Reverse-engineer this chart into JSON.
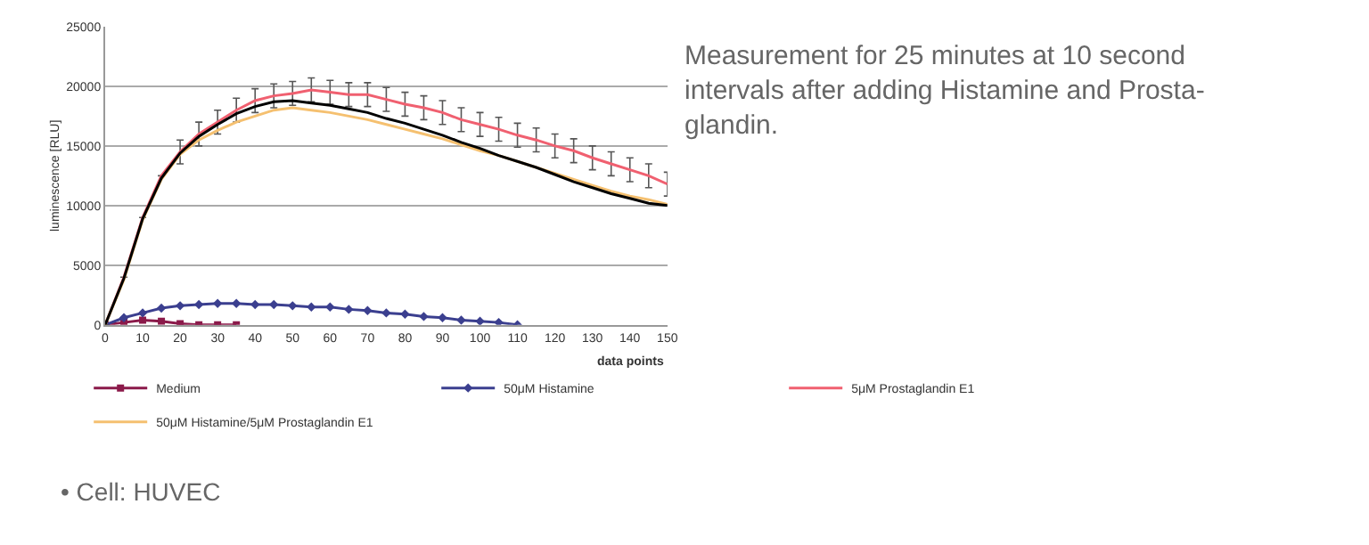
{
  "chart_data": {
    "type": "line",
    "ylabel": "luminescence [RLU]",
    "xlabel": "data points",
    "x": [
      0,
      5,
      10,
      15,
      20,
      25,
      30,
      35,
      40,
      45,
      50,
      55,
      60,
      65,
      70,
      75,
      80,
      85,
      90,
      95,
      100,
      105,
      110,
      115,
      120,
      125,
      130,
      135,
      140,
      145,
      150
    ],
    "xlim": [
      0,
      150
    ],
    "xticks": [
      0,
      10,
      20,
      30,
      40,
      50,
      60,
      70,
      80,
      90,
      100,
      110,
      120,
      130,
      140,
      150
    ],
    "ylim": [
      0,
      25000
    ],
    "yticks": [
      0,
      5000,
      10000,
      15000,
      20000,
      25000
    ],
    "grid": "y",
    "legend": "bottom",
    "series": [
      {
        "name": "Medium",
        "color": "#8b1a4a",
        "marker": "square",
        "values": [
          0,
          200,
          400,
          300,
          100,
          0,
          0,
          0,
          null,
          null,
          null,
          null,
          null,
          null,
          null,
          null,
          null,
          null,
          null,
          null,
          null,
          null,
          null,
          null,
          null,
          null,
          null,
          null,
          null,
          null,
          null
        ]
      },
      {
        "name": "50μM Histamine",
        "color": "#3b3f8f",
        "marker": "diamond",
        "values": [
          0,
          600,
          1000,
          1400,
          1600,
          1700,
          1800,
          1800,
          1700,
          1700,
          1600,
          1500,
          1500,
          1300,
          1200,
          1000,
          900,
          700,
          600,
          400,
          300,
          200,
          0,
          null,
          null,
          null,
          null,
          null,
          null,
          null,
          null
        ]
      },
      {
        "name": "5μM Prostaglandin E1",
        "color": "#f06070",
        "marker": "none",
        "values": [
          0,
          4000,
          9000,
          12500,
          14500,
          16000,
          17000,
          18000,
          18800,
          19200,
          19400,
          19700,
          19500,
          19300,
          19300,
          18900,
          18500,
          18200,
          17800,
          17200,
          16800,
          16400,
          15900,
          15500,
          15000,
          14600,
          14000,
          13500,
          13000,
          12500,
          11800
        ],
        "errors": [
          null,
          null,
          null,
          null,
          1000,
          1000,
          1000,
          1000,
          1000,
          1000,
          1000,
          1000,
          1000,
          1000,
          1000,
          1000,
          1000,
          1000,
          1000,
          1000,
          1000,
          1000,
          1000,
          1000,
          1000,
          1000,
          1000,
          1000,
          1000,
          1000,
          1000
        ]
      },
      {
        "name": "50μM Histamine/5μM Prostaglandin E1",
        "color": "#f5c070",
        "marker": "none",
        "values": [
          0,
          3800,
          8800,
          12200,
          14300,
          15500,
          16300,
          17000,
          17500,
          18000,
          18200,
          18000,
          17800,
          17500,
          17200,
          16800,
          16400,
          16000,
          15600,
          15100,
          14600,
          14200,
          13700,
          13200,
          12700,
          12200,
          11700,
          11200,
          10800,
          10500,
          10100
        ]
      },
      {
        "color": "#000000",
        "marker": "none",
        "values": [
          0,
          3900,
          8900,
          12300,
          14400,
          15800,
          16800,
          17700,
          18300,
          18700,
          18800,
          18600,
          18400,
          18100,
          17800,
          17300,
          16900,
          16400,
          15900,
          15300,
          14800,
          14200,
          13700,
          13200,
          12600,
          12000,
          11500,
          11000,
          10600,
          10200,
          10000
        ]
      }
    ],
    "annotations": [
      "Measurement for 25 minutes at 10 second\nintervals after adding Histamine and Prosta-\nglandin.",
      "• Cell: HUVEC"
    ]
  }
}
